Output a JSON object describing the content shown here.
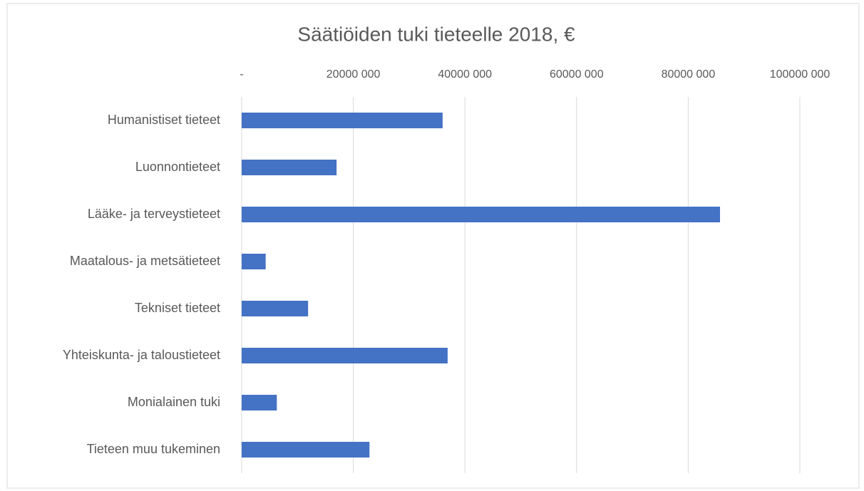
{
  "chart_data": {
    "type": "bar",
    "orientation": "horizontal",
    "title": "Säätiöiden tuki tieteelle 2018, €",
    "categories": [
      "Humanistiset tieteet",
      "Luonnontieteet",
      "Lääke- ja terveystieteet",
      "Maatalous- ja metsätieteet",
      "Tekniset tieteet",
      "Yhteiskunta- ja taloustieteet",
      "Monialainen tuki",
      "Tieteen muu tukeminen"
    ],
    "values": [
      36000000,
      17000000,
      85700000,
      4300000,
      11900000,
      36900000,
      6300000,
      22900000
    ],
    "color": "#4472c4",
    "xlim": [
      0,
      100000000
    ],
    "xticks": [
      {
        "value": 0,
        "label": "-"
      },
      {
        "value": 20000000,
        "label": "20000 000"
      },
      {
        "value": 40000000,
        "label": "40000 000"
      },
      {
        "value": 60000000,
        "label": "60000 000"
      },
      {
        "value": 80000000,
        "label": "80000 000"
      },
      {
        "value": 100000000,
        "label": "100000 000"
      }
    ],
    "grid": true
  }
}
